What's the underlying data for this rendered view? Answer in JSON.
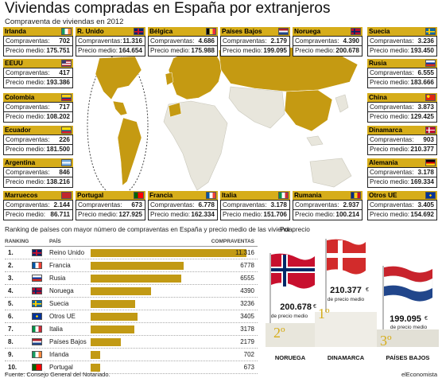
{
  "title": "Viviendas compradas en España por extranjeros",
  "subtitle": "Compraventa de viviendas en 2012",
  "labels": {
    "compraventas": "Compraventas:",
    "precio_medio": "Precio medio:"
  },
  "cards": [
    {
      "country": "Irlanda",
      "compraventas": "702",
      "precio": "175.751",
      "flag": "ireland-flag"
    },
    {
      "country": "R. Unido",
      "compraventas": "11.316",
      "precio": "164.654",
      "flag": "uk-flag"
    },
    {
      "country": "Bélgica",
      "compraventas": "4.686",
      "precio": "175.988",
      "flag": "belgium-flag"
    },
    {
      "country": "Países Bajos",
      "compraventas": "2.179",
      "precio": "199.095",
      "flag": "netherlands-flag"
    },
    {
      "country": "Noruega",
      "compraventas": "4.390",
      "precio": "200.678",
      "flag": "norway-flag"
    },
    {
      "country": "Suecia",
      "compraventas": "3.236",
      "precio": "193.450",
      "flag": "sweden-flag"
    },
    {
      "country": "EEUU",
      "compraventas": "417",
      "precio": "193.386",
      "flag": "usa-flag"
    },
    {
      "country": "Rusia",
      "compraventas": "6.555",
      "precio": "183.666",
      "flag": "russia-flag"
    },
    {
      "country": "Colombia",
      "compraventas": "717",
      "precio": "108.202",
      "flag": "colombia-flag"
    },
    {
      "country": "China",
      "compraventas": "3.873",
      "precio": "129.425",
      "flag": "china-flag"
    },
    {
      "country": "Ecuador",
      "compraventas": "226",
      "precio": "181.500",
      "flag": "ecuador-flag"
    },
    {
      "country": "Dinamarca",
      "compraventas": "903",
      "precio": "210.377",
      "flag": "denmark-flag"
    },
    {
      "country": "Argentina",
      "compraventas": "846",
      "precio": "138.216",
      "flag": "argentina-flag"
    },
    {
      "country": "Alemania",
      "compraventas": "3.178",
      "precio": "169.334",
      "flag": "germany-flag"
    },
    {
      "country": "Marruecos",
      "compraventas": "2.144",
      "precio": "86.711",
      "flag": "morocco-flag"
    },
    {
      "country": "Portugal",
      "compraventas": "673",
      "precio": "127.925",
      "flag": "portugal-flag"
    },
    {
      "country": "Francia",
      "compraventas": "6.778",
      "precio": "162.334",
      "flag": "france-flag"
    },
    {
      "country": "Italia",
      "compraventas": "3.178",
      "precio": "151.706",
      "flag": "italy-flag"
    },
    {
      "country": "Rumania",
      "compraventas": "2.937",
      "precio": "100.214",
      "flag": "romania-flag"
    },
    {
      "country": "Otros UE",
      "compraventas": "3.405",
      "precio": "154.692",
      "flag": "eu-flag"
    }
  ],
  "ranking": {
    "subtitle": "Ranking de países con mayor número de compraventas en España y precio medio de las vivienda",
    "headers": {
      "ranking": "RANKING",
      "pais": "PAÍS",
      "compraventas": "COMPRAVENTAS"
    },
    "rows": [
      {
        "rank": "1.",
        "country": "Reino Unido",
        "value": "11.316",
        "num": 11316,
        "flag": "uk-flag"
      },
      {
        "rank": "2.",
        "country": "Francia",
        "value": "6778",
        "num": 6778,
        "flag": "france-flag"
      },
      {
        "rank": "3.",
        "country": "Rusia",
        "value": "6555",
        "num": 6555,
        "flag": "russia-flag"
      },
      {
        "rank": "4.",
        "country": "Noruega",
        "value": "4390",
        "num": 4390,
        "flag": "norway-flag"
      },
      {
        "rank": "5.",
        "country": "Suecia",
        "value": "3236",
        "num": 3236,
        "flag": "sweden-flag"
      },
      {
        "rank": "6.",
        "country": "Otros UE",
        "value": "3405",
        "num": 3405,
        "flag": "eu-flag"
      },
      {
        "rank": "7.",
        "country": "Italia",
        "value": "3178",
        "num": 3178,
        "flag": "italy-flag"
      },
      {
        "rank": "8.",
        "country": "Países Bajos",
        "value": "2179",
        "num": 2179,
        "flag": "netherlands-flag"
      },
      {
        "rank": "9.",
        "country": "Irlanda",
        "value": "702",
        "num": 702,
        "flag": "ireland-flag"
      },
      {
        "rank": "10.",
        "country": "Portugal",
        "value": "673",
        "num": 673,
        "flag": "portugal-flag"
      }
    ],
    "max": 11316
  },
  "podium": {
    "heading": "Por precio",
    "euro": "€",
    "precio_label": "de precio medio",
    "first": {
      "place": "1º",
      "value": "210.377",
      "country": "DINAMARCA"
    },
    "second": {
      "place": "2º",
      "value": "200.678",
      "country": "NORUEGA"
    },
    "third": {
      "place": "3º",
      "value": "199.095",
      "country": "PAÍSES BAJOS"
    }
  },
  "source": "Fuente: Consejo General del Notariado.",
  "brand": "elEconomista",
  "colors": {
    "gold": "#d6ad1a",
    "bar": "#c29a14",
    "land": "#e8e6dc",
    "highlight": "#c59a12"
  }
}
